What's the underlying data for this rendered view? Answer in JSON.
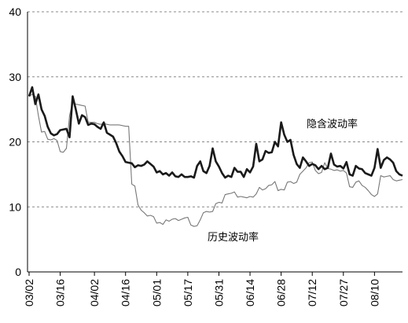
{
  "chart_data": {
    "type": "line",
    "title": "",
    "xlabel": "",
    "ylabel": "",
    "ylim": [
      0,
      40
    ],
    "yticks": [
      0,
      10,
      20,
      30,
      40
    ],
    "grid": true,
    "grid_style": "dashed horizontal",
    "x_tick_labels": [
      "03/02",
      "03/16",
      "04/02",
      "04/16",
      "05/01",
      "05/17",
      "05/31",
      "06/14",
      "06/28",
      "07/12",
      "07/27",
      "08/10"
    ],
    "x_tick_index": [
      0,
      10,
      21,
      31,
      41,
      51,
      61,
      71,
      81,
      91,
      101,
      111
    ],
    "n_points": 121,
    "series": [
      {
        "name": "隐含波动率",
        "color": "#1a1a1a",
        "style": "thick",
        "values": [
          27.0,
          28.4,
          25.8,
          27.3,
          25.0,
          24.0,
          22.3,
          21.3,
          21.0,
          21.2,
          21.8,
          21.9,
          22.0,
          20.7,
          27.0,
          25.0,
          22.8,
          24.1,
          23.8,
          22.6,
          22.8,
          22.7,
          22.3,
          22.0,
          23.0,
          21.4,
          21.1,
          20.8,
          19.8,
          18.5,
          17.8,
          16.9,
          16.8,
          16.7,
          16.1,
          16.4,
          16.3,
          16.5,
          17.0,
          16.6,
          16.2,
          15.3,
          15.5,
          15.0,
          15.2,
          14.8,
          15.3,
          14.7,
          14.6,
          15.0,
          14.6,
          14.6,
          14.7,
          14.5,
          16.3,
          17.0,
          15.5,
          15.2,
          16.3,
          19.0,
          17.0,
          16.2,
          15.2,
          14.5,
          14.8,
          14.6,
          16.0,
          15.4,
          15.4,
          14.6,
          15.8,
          15.3,
          16.2,
          19.7,
          17.0,
          17.3,
          18.6,
          18.3,
          18.4,
          20.0,
          19.3,
          23.0,
          21.1,
          20.0,
          20.3,
          18.0,
          16.6,
          16.0,
          17.6,
          17.0,
          16.3,
          16.6,
          16.4,
          15.8,
          16.3,
          15.8,
          16.0,
          18.2,
          16.5,
          16.2,
          16.3,
          15.9,
          16.9,
          15.0,
          14.8,
          16.3,
          15.9,
          15.8,
          15.2,
          15.0,
          14.8,
          16.0,
          18.9,
          16.0,
          17.2,
          17.6,
          17.3,
          16.8,
          15.5,
          15.0,
          14.8
        ]
      },
      {
        "name": "历史波动率",
        "color": "#777777",
        "style": "thin",
        "values": [
          27.0,
          27.3,
          27.0,
          24.0,
          21.5,
          21.6,
          20.4,
          20.3,
          20.5,
          20.2,
          18.5,
          18.4,
          19.0,
          24.0,
          26.2,
          25.8,
          25.7,
          25.6,
          25.5,
          23.0,
          23.0,
          23.0,
          22.8,
          22.7,
          22.8,
          22.7,
          22.6,
          22.6,
          22.6,
          22.6,
          22.5,
          22.4,
          22.4,
          13.5,
          13.2,
          10.3,
          9.5,
          9.1,
          8.6,
          8.7,
          8.5,
          7.5,
          7.6,
          7.3,
          8.0,
          7.8,
          8.1,
          8.2,
          7.9,
          8.1,
          8.3,
          8.4,
          7.2,
          7.0,
          7.1,
          8.0,
          9.1,
          9.3,
          9.2,
          9.3,
          10.5,
          10.7,
          10.6,
          11.9,
          12.0,
          12.1,
          12.3,
          11.5,
          11.6,
          11.5,
          11.4,
          11.6,
          11.5,
          12.0,
          13.0,
          12.6,
          12.8,
          13.3,
          13.4,
          13.9,
          12.5,
          12.7,
          12.6,
          13.8,
          13.9,
          13.6,
          13.8,
          15.0,
          15.5,
          16.0,
          16.8,
          16.9,
          15.6,
          15.1,
          15.3,
          16.8,
          15.9,
          15.8,
          15.6,
          15.7,
          15.5,
          15.6,
          15.2,
          13.1,
          13.0,
          13.8,
          14.0,
          13.3,
          13.0,
          12.5,
          11.9,
          11.6,
          12.0,
          14.8,
          14.6,
          14.7,
          14.8,
          14.2,
          14.0,
          14.1,
          14.2
        ]
      }
    ],
    "annotations": [
      {
        "text": "隐含波动率",
        "series": "隐含波动率"
      },
      {
        "text": "历史波动率",
        "series": "历史波动率"
      }
    ]
  }
}
